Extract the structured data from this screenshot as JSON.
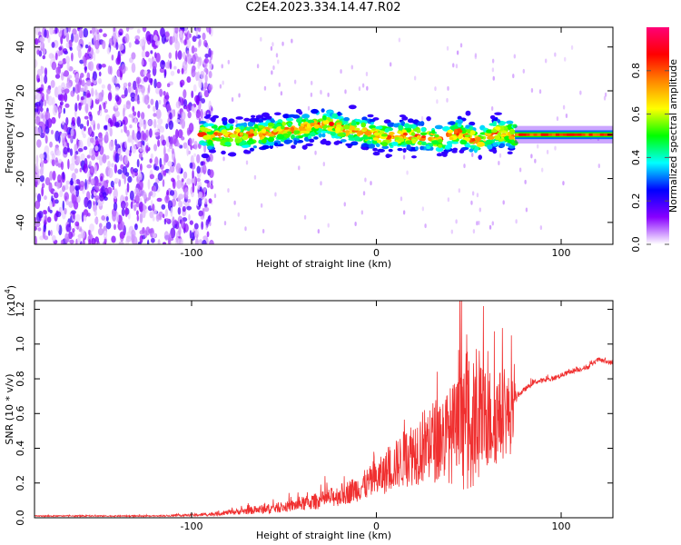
{
  "title": "C2E4.2023.334.14.47.R02",
  "chart_data": [
    {
      "type": "heatmap",
      "name": "spectrogram",
      "xlabel": "Height of straight line (km)",
      "ylabel": "Frequency (Hz)",
      "xlim": [
        -185,
        128
      ],
      "ylim": [
        -50,
        49
      ],
      "xticks": [
        -100,
        0,
        100
      ],
      "xtick_labels": [
        "-100",
        "0",
        "100"
      ],
      "yticks": [
        -40,
        -20,
        0,
        20,
        40
      ],
      "ytick_labels": [
        "-40",
        "-20",
        "0",
        "20",
        "40"
      ],
      "colorbar": {
        "label": "Normalized spectral amplitude",
        "range": [
          0,
          1
        ],
        "ticks": [
          0.0,
          0.2,
          0.4,
          0.6,
          0.8
        ],
        "tick_labels": [
          "0.0",
          "0.2",
          "0.4",
          "0.6",
          "0.8"
        ],
        "colors": [
          "#ffffff",
          "#8800ff",
          "#0000ff",
          "#00ffff",
          "#00ff00",
          "#ffff00",
          "#ff8800",
          "#ff0000",
          "#ff0077"
        ]
      },
      "regions": [
        {
          "x_range": [
            -185,
            -95
          ],
          "y_range": [
            -50,
            49
          ],
          "pattern": "noise",
          "amplitude": [
            0.02,
            0.2
          ]
        },
        {
          "x_range": [
            -95,
            75
          ],
          "center_hz": 0,
          "width_hz": 10,
          "pattern": "band",
          "amplitude": [
            0.2,
            0.9
          ]
        },
        {
          "x_range": [
            75,
            128
          ],
          "center_hz": 0,
          "width_hz": 4,
          "pattern": "steady-line",
          "amplitude": [
            0.75,
            0.9
          ]
        }
      ],
      "band_center_hz": [
        {
          "x": -95,
          "y": 0
        },
        {
          "x": -80,
          "y": -1
        },
        {
          "x": -65,
          "y": 0
        },
        {
          "x": -50,
          "y": 2
        },
        {
          "x": -40,
          "y": 3
        },
        {
          "x": -30,
          "y": 5
        },
        {
          "x": -25,
          "y": 5
        },
        {
          "x": -15,
          "y": 2
        },
        {
          "x": -5,
          "y": 1
        },
        {
          "x": 5,
          "y": -1
        },
        {
          "x": 15,
          "y": 0
        },
        {
          "x": 25,
          "y": -1
        },
        {
          "x": 35,
          "y": -2
        },
        {
          "x": 45,
          "y": 1
        },
        {
          "x": 55,
          "y": -3
        },
        {
          "x": 65,
          "y": 1
        },
        {
          "x": 75,
          "y": 0
        },
        {
          "x": 128,
          "y": 0
        }
      ]
    },
    {
      "type": "line",
      "name": "snr",
      "xlabel": "Height of straight line (km)",
      "ylabel": "SNR (10 * v/v)",
      "y_scale_label": "(x10",
      "y_scale_exponent": "4",
      "y_scale_suffix": ")",
      "xlim": [
        -185,
        128
      ],
      "ylim": [
        0,
        1.25
      ],
      "xticks": [
        -100,
        0,
        100
      ],
      "xtick_labels": [
        "-100",
        "0",
        "100"
      ],
      "yticks": [
        0.0,
        0.2,
        0.4,
        0.6,
        0.8,
        1.0,
        1.2
      ],
      "ytick_labels": [
        "0.0",
        "0.2",
        "0.4",
        "0.6",
        "0.8",
        "1.0",
        "1.2"
      ],
      "color": "#f03030",
      "envelope": {
        "x": [
          -185,
          -120,
          -100,
          -90,
          -80,
          -70,
          -60,
          -50,
          -40,
          -30,
          -20,
          -10,
          0,
          10,
          20,
          30,
          40,
          50,
          60,
          70,
          75,
          76,
          85,
          95,
          105,
          115,
          120,
          128
        ],
        "baseline": [
          0.01,
          0.01,
          0.015,
          0.02,
          0.03,
          0.04,
          0.05,
          0.06,
          0.08,
          0.1,
          0.13,
          0.17,
          0.22,
          0.3,
          0.38,
          0.44,
          0.48,
          0.52,
          0.56,
          0.6,
          0.58,
          0.7,
          0.78,
          0.8,
          0.84,
          0.87,
          0.91,
          0.89
        ],
        "spread": [
          0.005,
          0.005,
          0.01,
          0.015,
          0.02,
          0.03,
          0.04,
          0.04,
          0.06,
          0.07,
          0.09,
          0.11,
          0.15,
          0.2,
          0.28,
          0.34,
          0.4,
          0.55,
          0.45,
          0.35,
          0.3,
          0.02,
          0.02,
          0.02,
          0.02,
          0.02,
          0.02,
          0.02
        ]
      }
    }
  ]
}
